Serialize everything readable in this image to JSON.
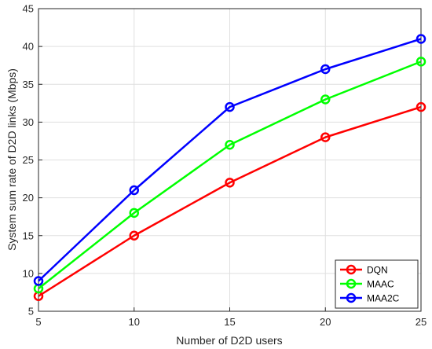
{
  "chart_data": {
    "type": "line",
    "title": "",
    "xlabel": "Number of D2D users",
    "ylabel": "System sum rate of D2D links (Mbps)",
    "x": [
      5,
      10,
      15,
      20,
      25
    ],
    "xlim": [
      5,
      25
    ],
    "ylim": [
      5,
      45
    ],
    "xticks": [
      "5",
      "10",
      "15",
      "20",
      "25"
    ],
    "yticks": [
      "5",
      "10",
      "15",
      "20",
      "25",
      "30",
      "35",
      "40",
      "45"
    ],
    "grid": true,
    "legend_position": "bottom-right",
    "marker": "circle",
    "series": [
      {
        "name": "DQN",
        "color": "#ff0000",
        "values": [
          7,
          15,
          22,
          28,
          32
        ]
      },
      {
        "name": "MAAC",
        "color": "#00ff00",
        "values": [
          8,
          18,
          27,
          33,
          38
        ]
      },
      {
        "name": "MAA2C",
        "color": "#0000ff",
        "values": [
          9,
          21,
          32,
          37,
          41
        ]
      }
    ]
  }
}
